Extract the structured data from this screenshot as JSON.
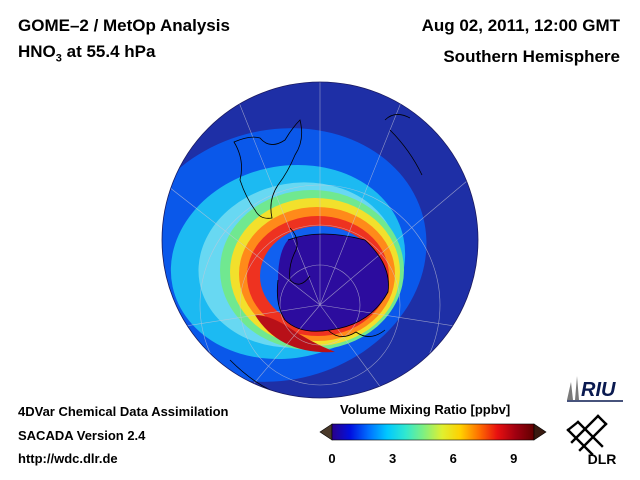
{
  "header": {
    "title_line1": "GOME–2 / MetOp Analysis",
    "title_species": "HNO",
    "title_subscript": "3",
    "title_rest": " at 55.4 hPa",
    "datetime": "Aug 02, 2011, 12:00 GMT",
    "hemisphere": "Southern Hemisphere"
  },
  "footer": {
    "line1": "4DVar Chemical Data Assimilation",
    "line2": "SACADA Version 2.4",
    "line3": "http://wdc.dlr.de"
  },
  "colorbar": {
    "title": "Volume Mixing Ratio [ppbv]",
    "min": 0,
    "max": 10,
    "ticks": [
      {
        "value": 0,
        "label": "0"
      },
      {
        "value": 3,
        "label": "3"
      },
      {
        "value": 6,
        "label": "6"
      },
      {
        "value": 9,
        "label": "9"
      }
    ],
    "stops": [
      "#2a008a",
      "#0010e0",
      "#0070ff",
      "#00c8ff",
      "#30e8d0",
      "#80f080",
      "#e0f030",
      "#ffd000",
      "#ff7000",
      "#e81010",
      "#a00010",
      "#600000"
    ]
  },
  "logos": {
    "riu": "RIU",
    "dlr": "DLR"
  },
  "map": {
    "projection": "orthographic south polar",
    "field": "HNO3 volume mixing ratio",
    "colors": {
      "background": "#1a2a9c",
      "outer_band": "#0a55e8",
      "mid_band": "#18b8f0",
      "yellow_band": "#f0e030",
      "red_band": "#e83020",
      "vortex_core": "#2a0a9a"
    }
  }
}
